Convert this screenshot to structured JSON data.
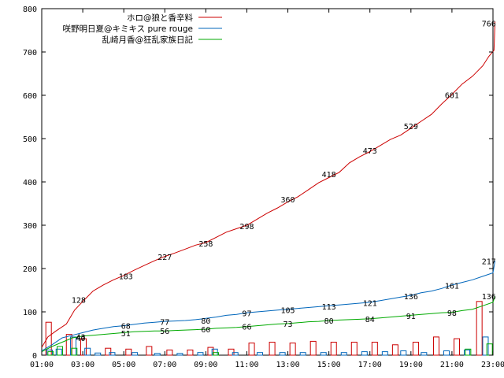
{
  "chart_data": {
    "type": "line",
    "x_ticks": [
      "01:00",
      "03:00",
      "05:00",
      "07:00",
      "09:00",
      "11:00",
      "13:00",
      "15:00",
      "17:00",
      "19:00",
      "21:00",
      "23:00"
    ],
    "y_ticks": [
      "0",
      "100",
      "200",
      "300",
      "400",
      "500",
      "600",
      "700",
      "800"
    ],
    "xlim": [
      1,
      23
    ],
    "ylim": [
      0,
      800
    ],
    "grid": false,
    "legend_position": "top-left",
    "series": [
      {
        "name": "ホロ@狼と香辛料",
        "color": "#cc0000",
        "points": [
          [
            1,
            18
          ],
          [
            1.3,
            42
          ],
          [
            1.7,
            56
          ],
          [
            2.2,
            72
          ],
          [
            2.6,
            104
          ],
          [
            3,
            124
          ],
          [
            3.5,
            148
          ],
          [
            4,
            162
          ],
          [
            4.5,
            174
          ],
          [
            5,
            184
          ],
          [
            5.5,
            196
          ],
          [
            6,
            207
          ],
          [
            6.5,
            218
          ],
          [
            7,
            228
          ],
          [
            7.5,
            236
          ],
          [
            8,
            245
          ],
          [
            8.5,
            254
          ],
          [
            9,
            260
          ],
          [
            9.5,
            272
          ],
          [
            10,
            284
          ],
          [
            10.5,
            292
          ],
          [
            11,
            300
          ],
          [
            11.5,
            314
          ],
          [
            12,
            328
          ],
          [
            12.5,
            340
          ],
          [
            13,
            354
          ],
          [
            13.5,
            366
          ],
          [
            14,
            382
          ],
          [
            14.5,
            398
          ],
          [
            15,
            410
          ],
          [
            15.5,
            422
          ],
          [
            16,
            444
          ],
          [
            16.5,
            458
          ],
          [
            17,
            470
          ],
          [
            17.5,
            484
          ],
          [
            18,
            498
          ],
          [
            18.5,
            508
          ],
          [
            19,
            524
          ],
          [
            19.5,
            540
          ],
          [
            20,
            556
          ],
          [
            20.5,
            580
          ],
          [
            21,
            602
          ],
          [
            21.5,
            626
          ],
          [
            22,
            644
          ],
          [
            22.5,
            668
          ],
          [
            22.8,
            690
          ],
          [
            23.05,
            704
          ],
          [
            23.1,
            770
          ]
        ],
        "labels": [
          [
            2.8,
            128
          ],
          [
            5.1,
            183
          ],
          [
            7,
            227
          ],
          [
            9,
            258
          ],
          [
            11,
            298
          ],
          [
            13,
            360
          ],
          [
            15,
            418
          ],
          [
            17,
            473
          ],
          [
            19,
            529
          ],
          [
            21,
            601
          ],
          [
            22.8,
            766
          ]
        ]
      },
      {
        "name": "咲野明日夏@キミキス pure rouge",
        "color": "#0066bb",
        "points": [
          [
            1,
            10
          ],
          [
            1.5,
            24
          ],
          [
            2,
            40
          ],
          [
            2.5,
            46
          ],
          [
            3,
            52
          ],
          [
            3.5,
            58
          ],
          [
            4,
            62
          ],
          [
            4.5,
            66
          ],
          [
            5,
            68
          ],
          [
            5.5,
            71
          ],
          [
            6,
            74
          ],
          [
            6.5,
            76
          ],
          [
            7,
            78
          ],
          [
            7.5,
            79
          ],
          [
            8,
            80
          ],
          [
            8.5,
            82
          ],
          [
            9,
            85
          ],
          [
            9.5,
            88
          ],
          [
            10,
            92
          ],
          [
            10.5,
            94
          ],
          [
            11,
            98
          ],
          [
            11.5,
            100
          ],
          [
            12,
            102
          ],
          [
            12.5,
            104
          ],
          [
            13,
            106
          ],
          [
            13.5,
            108
          ],
          [
            14,
            110
          ],
          [
            14.5,
            112
          ],
          [
            15,
            114
          ],
          [
            15.5,
            116
          ],
          [
            16,
            118
          ],
          [
            16.5,
            120
          ],
          [
            17,
            122
          ],
          [
            17.5,
            126
          ],
          [
            18,
            130
          ],
          [
            18.5,
            134
          ],
          [
            19,
            138
          ],
          [
            19.5,
            144
          ],
          [
            20,
            148
          ],
          [
            20.5,
            154
          ],
          [
            21,
            162
          ],
          [
            21.5,
            168
          ],
          [
            22,
            174
          ],
          [
            22.5,
            182
          ],
          [
            23,
            190
          ],
          [
            23.1,
            218
          ]
        ],
        "labels": [
          [
            2.9,
            43
          ],
          [
            5.1,
            68
          ],
          [
            7,
            77
          ],
          [
            9,
            80
          ],
          [
            11,
            97
          ],
          [
            13,
            105
          ],
          [
            15,
            113
          ],
          [
            17,
            121
          ],
          [
            19,
            136
          ],
          [
            21,
            161
          ],
          [
            22.8,
            217
          ]
        ]
      },
      {
        "name": "乱崎月香@狂乱家族日記",
        "color": "#00aa00",
        "points": [
          [
            1,
            8
          ],
          [
            1.5,
            20
          ],
          [
            2,
            30
          ],
          [
            2.5,
            40
          ],
          [
            3,
            44
          ],
          [
            3.5,
            46
          ],
          [
            4,
            48
          ],
          [
            4.5,
            50
          ],
          [
            5,
            52
          ],
          [
            5.5,
            54
          ],
          [
            6,
            55
          ],
          [
            6.5,
            56
          ],
          [
            7,
            56
          ],
          [
            7.5,
            57
          ],
          [
            8,
            58
          ],
          [
            8.5,
            59
          ],
          [
            9,
            60
          ],
          [
            9.5,
            62
          ],
          [
            10,
            63
          ],
          [
            10.5,
            64
          ],
          [
            11,
            66
          ],
          [
            11.5,
            68
          ],
          [
            12,
            70
          ],
          [
            12.5,
            72
          ],
          [
            13,
            73
          ],
          [
            13.5,
            75
          ],
          [
            14,
            77
          ],
          [
            14.5,
            78
          ],
          [
            15,
            80
          ],
          [
            15.5,
            81
          ],
          [
            16,
            82
          ],
          [
            16.5,
            83
          ],
          [
            17,
            84
          ],
          [
            17.5,
            86
          ],
          [
            18,
            88
          ],
          [
            18.5,
            90
          ],
          [
            19,
            92
          ],
          [
            19.5,
            94
          ],
          [
            20,
            96
          ],
          [
            20.5,
            98
          ],
          [
            21,
            99
          ],
          [
            21.5,
            103
          ],
          [
            22,
            106
          ],
          [
            22.5,
            114
          ],
          [
            23,
            122
          ],
          [
            23.1,
            137
          ]
        ],
        "labels": [
          [
            2.9,
            40
          ],
          [
            5.1,
            51
          ],
          [
            7,
            56
          ],
          [
            9,
            60
          ],
          [
            11,
            66
          ],
          [
            13,
            73
          ],
          [
            15,
            80
          ],
          [
            17,
            84
          ],
          [
            19,
            91
          ],
          [
            21,
            98
          ],
          [
            22.8,
            136
          ]
        ]
      }
    ],
    "hourly_bars": [
      {
        "x": 1.2,
        "s": 0,
        "v": 76
      },
      {
        "x": 1.25,
        "s": 1,
        "v": 12
      },
      {
        "x": 1.3,
        "s": 2,
        "v": 8
      },
      {
        "x": 1.7,
        "s": 1,
        "v": 14
      },
      {
        "x": 1.75,
        "s": 2,
        "v": 20
      },
      {
        "x": 2.2,
        "s": 0,
        "v": 48
      },
      {
        "x": 2.4,
        "s": 1,
        "v": 42
      },
      {
        "x": 2.45,
        "s": 2,
        "v": 16
      },
      {
        "x": 2.9,
        "s": 0,
        "v": 38
      },
      {
        "x": 3.1,
        "s": 1,
        "v": 16
      },
      {
        "x": 3.6,
        "s": 1,
        "v": 5
      },
      {
        "x": 4.1,
        "s": 0,
        "v": 16
      },
      {
        "x": 4.3,
        "s": 1,
        "v": 6
      },
      {
        "x": 5.1,
        "s": 0,
        "v": 14
      },
      {
        "x": 5.4,
        "s": 1,
        "v": 6
      },
      {
        "x": 6.1,
        "s": 0,
        "v": 20
      },
      {
        "x": 6.5,
        "s": 1,
        "v": 4
      },
      {
        "x": 7.1,
        "s": 0,
        "v": 12
      },
      {
        "x": 7.6,
        "s": 1,
        "v": 4
      },
      {
        "x": 8.1,
        "s": 0,
        "v": 12
      },
      {
        "x": 8.6,
        "s": 1,
        "v": 6
      },
      {
        "x": 9.1,
        "s": 0,
        "v": 18
      },
      {
        "x": 9.3,
        "s": 1,
        "v": 14
      },
      {
        "x": 9.35,
        "s": 2,
        "v": 6
      },
      {
        "x": 10.1,
        "s": 0,
        "v": 14
      },
      {
        "x": 10.3,
        "s": 1,
        "v": 6
      },
      {
        "x": 11.1,
        "s": 0,
        "v": 28
      },
      {
        "x": 11.5,
        "s": 1,
        "v": 6
      },
      {
        "x": 12.1,
        "s": 0,
        "v": 30
      },
      {
        "x": 12.6,
        "s": 1,
        "v": 6
      },
      {
        "x": 13.1,
        "s": 0,
        "v": 28
      },
      {
        "x": 13.6,
        "s": 1,
        "v": 6
      },
      {
        "x": 14.1,
        "s": 0,
        "v": 32
      },
      {
        "x": 14.6,
        "s": 1,
        "v": 6
      },
      {
        "x": 15.1,
        "s": 0,
        "v": 30
      },
      {
        "x": 15.6,
        "s": 1,
        "v": 6
      },
      {
        "x": 16.1,
        "s": 0,
        "v": 30
      },
      {
        "x": 16.6,
        "s": 1,
        "v": 8
      },
      {
        "x": 17.1,
        "s": 0,
        "v": 30
      },
      {
        "x": 17.6,
        "s": 1,
        "v": 8
      },
      {
        "x": 18.1,
        "s": 0,
        "v": 24
      },
      {
        "x": 18.5,
        "s": 1,
        "v": 10
      },
      {
        "x": 19.1,
        "s": 0,
        "v": 30
      },
      {
        "x": 19.5,
        "s": 1,
        "v": 6
      },
      {
        "x": 20.1,
        "s": 0,
        "v": 42
      },
      {
        "x": 20.6,
        "s": 1,
        "v": 10
      },
      {
        "x": 21.1,
        "s": 0,
        "v": 38
      },
      {
        "x": 21.6,
        "s": 1,
        "v": 12
      },
      {
        "x": 21.65,
        "s": 2,
        "v": 14
      },
      {
        "x": 22.2,
        "s": 0,
        "v": 124
      },
      {
        "x": 22.5,
        "s": 1,
        "v": 42
      },
      {
        "x": 22.7,
        "s": 2,
        "v": 26
      }
    ]
  }
}
